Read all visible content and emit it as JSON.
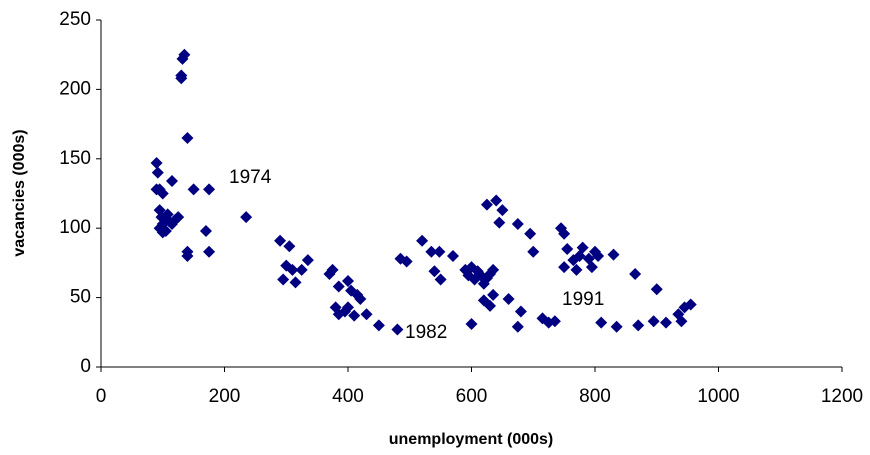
{
  "chart_data": {
    "type": "scatter",
    "x_label": "unemployment (000s)",
    "y_label": "vacancies (000s)",
    "color": "#000080",
    "xlim": [
      0,
      1200
    ],
    "ylim": [
      0,
      250
    ],
    "xticks": [
      0,
      200,
      400,
      600,
      800,
      1000,
      1200
    ],
    "yticks": [
      0,
      50,
      100,
      150,
      200,
      250
    ],
    "annotations": [
      "1974",
      "1982",
      "1991"
    ],
    "x": [
      90,
      92,
      95,
      100,
      90,
      95,
      98,
      100,
      95,
      100,
      105,
      108,
      110,
      115,
      120,
      125,
      115,
      130,
      130,
      132,
      135,
      140,
      140,
      140,
      150,
      170,
      175,
      175,
      235,
      290,
      295,
      300,
      305,
      310,
      315,
      325,
      335,
      370,
      375,
      380,
      385,
      385,
      395,
      400,
      400,
      405,
      410,
      415,
      420,
      430,
      450,
      480,
      485,
      495,
      520,
      535,
      540,
      548,
      550,
      570,
      590,
      595,
      600,
      605,
      610,
      615,
      620,
      625,
      630,
      635,
      600,
      620,
      630,
      635,
      625,
      640,
      645,
      650,
      660,
      675,
      675,
      680,
      695,
      700,
      715,
      725,
      735,
      745,
      750,
      750,
      755,
      765,
      770,
      775,
      780,
      790,
      795,
      800,
      805,
      810,
      830,
      835,
      865,
      870,
      895,
      900,
      915,
      935,
      940,
      945,
      955
    ],
    "values": [
      147,
      140,
      128,
      125,
      128,
      113,
      108,
      103,
      100,
      97,
      98,
      110,
      105,
      134,
      106,
      108,
      103,
      208,
      210,
      222,
      225,
      165,
      83,
      80,
      128,
      98,
      83,
      128,
      108,
      91,
      63,
      73,
      87,
      70,
      61,
      70,
      77,
      67,
      70,
      43,
      38,
      58,
      40,
      43,
      62,
      55,
      37,
      52,
      49,
      38,
      30,
      27,
      78,
      76,
      91,
      83,
      69,
      83,
      63,
      80,
      70,
      66,
      72,
      63,
      69,
      66,
      60,
      64,
      67,
      70,
      31,
      48,
      44,
      52,
      117,
      120,
      104,
      113,
      49,
      103,
      29,
      40,
      96,
      83,
      35,
      32,
      33,
      100,
      96,
      72,
      85,
      77,
      70,
      80,
      86,
      78,
      72,
      83,
      80,
      32,
      81,
      29,
      67,
      30,
      33,
      56,
      32,
      38,
      33,
      43,
      45
    ]
  }
}
